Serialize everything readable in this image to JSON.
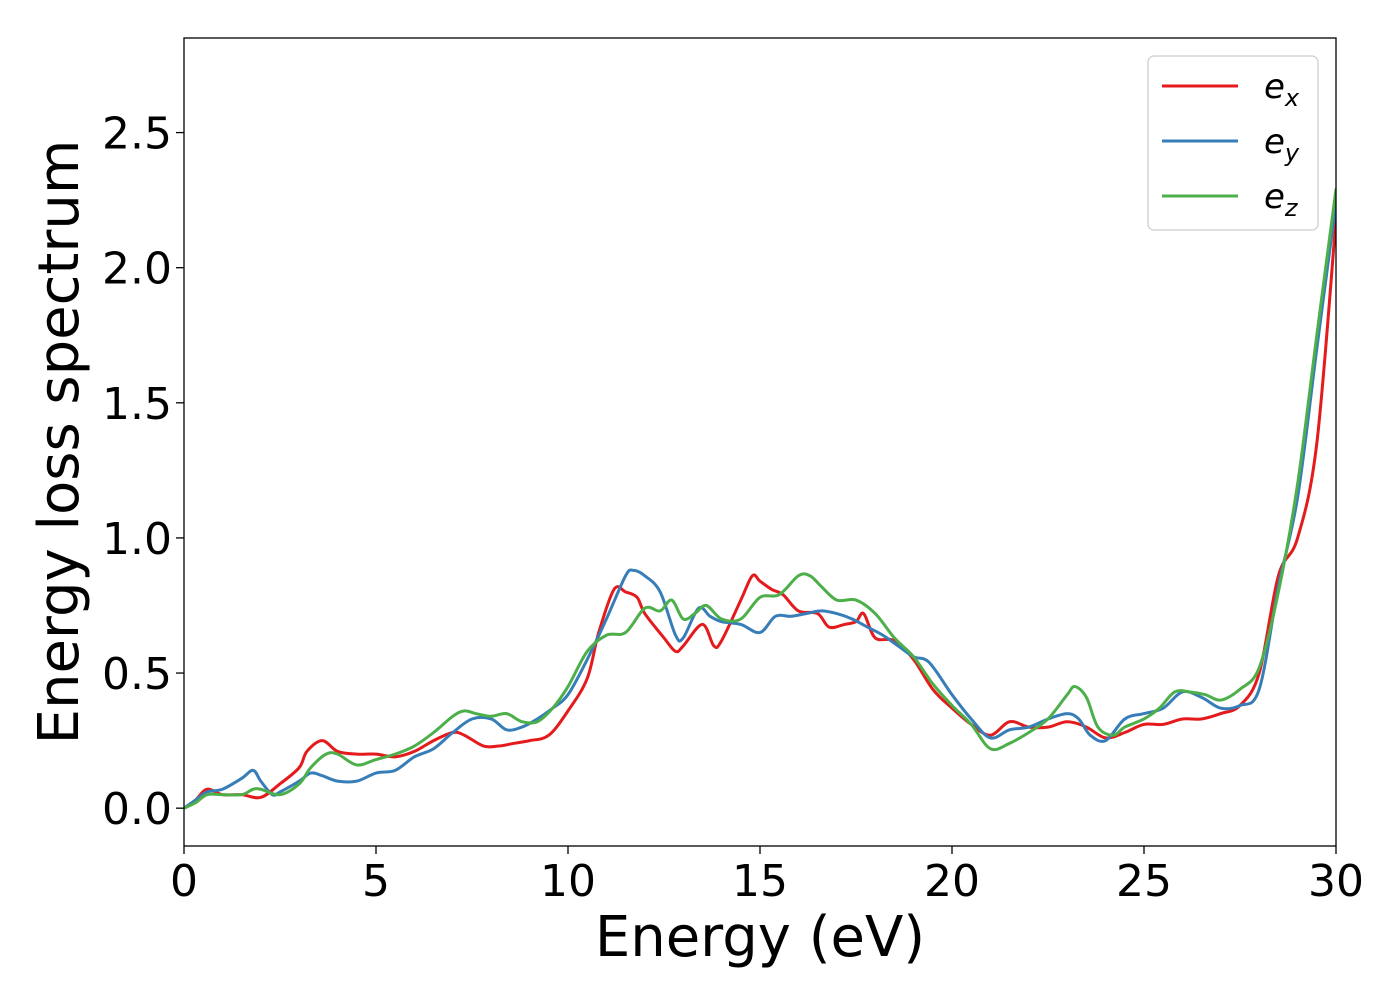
{
  "chart_data": {
    "type": "line",
    "xlabel": "Energy (eV)",
    "ylabel": "Energy loss spectrum",
    "xlim": [
      0,
      30
    ],
    "ylim": [
      -0.14,
      2.85
    ],
    "xticks": [
      0,
      5,
      10,
      15,
      20,
      25,
      30
    ],
    "xtick_labels": [
      "0",
      "5",
      "10",
      "15",
      "20",
      "25",
      "30"
    ],
    "yticks": [
      0.0,
      0.5,
      1.0,
      1.5,
      2.0,
      2.5
    ],
    "ytick_labels": [
      "0.0",
      "0.5",
      "1.0",
      "1.5",
      "2.0",
      "2.5"
    ],
    "grid": false,
    "legend_position": "top-right",
    "series": [
      {
        "name": "e",
        "subscript": "x",
        "color": "#e41a1c",
        "x": [
          0,
          0.3,
          0.6,
          1.0,
          1.5,
          2.0,
          2.5,
          3.0,
          3.2,
          3.6,
          4.0,
          4.5,
          5.0,
          5.5,
          6.0,
          6.5,
          7.0,
          7.3,
          7.8,
          8.2,
          8.6,
          9.0,
          9.5,
          10.0,
          10.5,
          10.8,
          11.2,
          11.5,
          11.8,
          12.0,
          12.5,
          12.8,
          13.0,
          13.5,
          13.8,
          14.0,
          14.5,
          14.8,
          15.0,
          15.3,
          15.6,
          16.0,
          16.5,
          16.8,
          17.2,
          17.5,
          17.7,
          18.0,
          18.5,
          19.0,
          19.5,
          20.0,
          20.5,
          21.0,
          21.5,
          22.0,
          22.5,
          23.0,
          23.5,
          24.0,
          24.5,
          25.0,
          25.5,
          26.0,
          26.5,
          27.0,
          27.5,
          28.0,
          28.5,
          29.0,
          29.5,
          30.0
        ],
        "values": [
          0.0,
          0.03,
          0.07,
          0.05,
          0.05,
          0.04,
          0.09,
          0.15,
          0.21,
          0.25,
          0.21,
          0.2,
          0.2,
          0.19,
          0.21,
          0.25,
          0.28,
          0.27,
          0.23,
          0.23,
          0.24,
          0.25,
          0.27,
          0.36,
          0.48,
          0.65,
          0.81,
          0.8,
          0.78,
          0.72,
          0.63,
          0.58,
          0.6,
          0.68,
          0.6,
          0.62,
          0.77,
          0.86,
          0.84,
          0.81,
          0.79,
          0.73,
          0.72,
          0.67,
          0.68,
          0.69,
          0.72,
          0.63,
          0.62,
          0.55,
          0.44,
          0.37,
          0.31,
          0.27,
          0.32,
          0.3,
          0.3,
          0.32,
          0.3,
          0.26,
          0.28,
          0.31,
          0.31,
          0.33,
          0.33,
          0.35,
          0.38,
          0.5,
          0.86,
          1.0,
          1.35,
          2.18
        ]
      },
      {
        "name": "e",
        "subscript": "y",
        "color": "#377eb8",
        "x": [
          0,
          0.3,
          0.6,
          1.0,
          1.5,
          1.8,
          2.0,
          2.3,
          2.5,
          3.0,
          3.3,
          3.6,
          4.0,
          4.5,
          5.0,
          5.5,
          6.0,
          6.5,
          7.0,
          7.5,
          8.0,
          8.4,
          8.8,
          9.2,
          9.6,
          10.0,
          10.5,
          11.0,
          11.5,
          11.7,
          12.0,
          12.4,
          12.8,
          13.0,
          13.4,
          13.7,
          14.0,
          14.5,
          15.0,
          15.4,
          15.8,
          16.2,
          16.6,
          17.0,
          17.4,
          17.8,
          18.2,
          18.6,
          19.0,
          19.4,
          20.0,
          20.5,
          21.0,
          21.5,
          22.0,
          22.5,
          23.0,
          23.3,
          23.6,
          24.0,
          24.5,
          25.0,
          25.5,
          26.0,
          26.5,
          27.0,
          27.5,
          28.0,
          28.5,
          29.0,
          29.5,
          30.0
        ],
        "values": [
          0.0,
          0.03,
          0.06,
          0.07,
          0.11,
          0.14,
          0.1,
          0.05,
          0.06,
          0.1,
          0.13,
          0.12,
          0.1,
          0.1,
          0.13,
          0.14,
          0.19,
          0.22,
          0.28,
          0.33,
          0.33,
          0.29,
          0.3,
          0.33,
          0.37,
          0.42,
          0.55,
          0.7,
          0.86,
          0.88,
          0.86,
          0.8,
          0.64,
          0.63,
          0.74,
          0.71,
          0.69,
          0.68,
          0.65,
          0.71,
          0.71,
          0.72,
          0.73,
          0.72,
          0.7,
          0.67,
          0.64,
          0.6,
          0.56,
          0.54,
          0.42,
          0.33,
          0.26,
          0.29,
          0.3,
          0.33,
          0.35,
          0.33,
          0.27,
          0.25,
          0.33,
          0.35,
          0.37,
          0.43,
          0.41,
          0.37,
          0.38,
          0.44,
          0.82,
          1.15,
          1.7,
          2.24
        ]
      },
      {
        "name": "e",
        "subscript": "z",
        "color": "#4daf4a",
        "x": [
          0,
          0.3,
          0.6,
          1.0,
          1.5,
          1.8,
          2.0,
          2.5,
          3.0,
          3.3,
          3.7,
          4.0,
          4.5,
          5.0,
          5.5,
          6.0,
          6.5,
          7.0,
          7.3,
          7.6,
          8.0,
          8.4,
          8.8,
          9.2,
          9.6,
          10.0,
          10.5,
          11.0,
          11.5,
          12.0,
          12.4,
          12.7,
          13.0,
          13.3,
          13.6,
          14.0,
          14.5,
          15.0,
          15.5,
          16.0,
          16.3,
          16.6,
          17.0,
          17.5,
          18.0,
          18.5,
          19.0,
          19.5,
          20.0,
          20.5,
          21.0,
          21.5,
          22.0,
          22.5,
          23.0,
          23.2,
          23.5,
          23.8,
          24.2,
          24.5,
          25.0,
          25.4,
          25.8,
          26.2,
          26.6,
          27.0,
          27.5,
          28.0,
          28.5,
          29.0,
          29.5,
          30.0
        ],
        "values": [
          0.0,
          0.02,
          0.05,
          0.05,
          0.05,
          0.07,
          0.07,
          0.05,
          0.09,
          0.15,
          0.2,
          0.2,
          0.16,
          0.18,
          0.2,
          0.23,
          0.28,
          0.34,
          0.36,
          0.35,
          0.34,
          0.35,
          0.32,
          0.32,
          0.37,
          0.45,
          0.58,
          0.64,
          0.65,
          0.74,
          0.73,
          0.77,
          0.7,
          0.72,
          0.75,
          0.7,
          0.7,
          0.78,
          0.79,
          0.86,
          0.86,
          0.82,
          0.77,
          0.77,
          0.72,
          0.63,
          0.56,
          0.46,
          0.38,
          0.31,
          0.22,
          0.24,
          0.28,
          0.33,
          0.42,
          0.45,
          0.41,
          0.3,
          0.27,
          0.3,
          0.33,
          0.37,
          0.43,
          0.43,
          0.42,
          0.4,
          0.44,
          0.52,
          0.8,
          1.2,
          1.75,
          2.29
        ]
      }
    ]
  }
}
